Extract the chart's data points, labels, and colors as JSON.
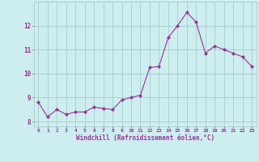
{
  "x": [
    0,
    1,
    2,
    3,
    4,
    5,
    6,
    7,
    8,
    9,
    10,
    11,
    12,
    13,
    14,
    15,
    16,
    17,
    18,
    19,
    20,
    21,
    22,
    23
  ],
  "y": [
    8.8,
    8.2,
    8.5,
    8.3,
    8.4,
    8.4,
    8.6,
    8.55,
    8.5,
    8.9,
    9.0,
    9.1,
    10.25,
    10.3,
    11.5,
    12.0,
    12.55,
    12.15,
    10.85,
    11.15,
    11.0,
    10.85,
    10.7,
    10.3
  ],
  "line_color": "#993399",
  "marker": "D",
  "marker_size": 2,
  "bg_color": "#cceeee",
  "grid_color": "#aacccc",
  "xlabel": "Windchill (Refroidissement éolien,°C)",
  "xlabel_color": "#993399",
  "tick_color": "#993399",
  "ylim": [
    7.8,
    13.0
  ],
  "xlim": [
    -0.5,
    23.5
  ],
  "yticks": [
    8,
    9,
    10,
    11,
    12
  ],
  "xticks": [
    0,
    1,
    2,
    3,
    4,
    5,
    6,
    7,
    8,
    9,
    10,
    11,
    12,
    13,
    14,
    15,
    16,
    17,
    18,
    19,
    20,
    21,
    22,
    23
  ],
  "xtick_labels": [
    "0",
    "1",
    "2",
    "3",
    "4",
    "5",
    "6",
    "7",
    "8",
    "9",
    "10",
    "11",
    "12",
    "13",
    "14",
    "15",
    "16",
    "17",
    "18",
    "19",
    "20",
    "21",
    "22",
    "23"
  ],
  "figsize": [
    3.2,
    2.0
  ],
  "dpi": 100
}
